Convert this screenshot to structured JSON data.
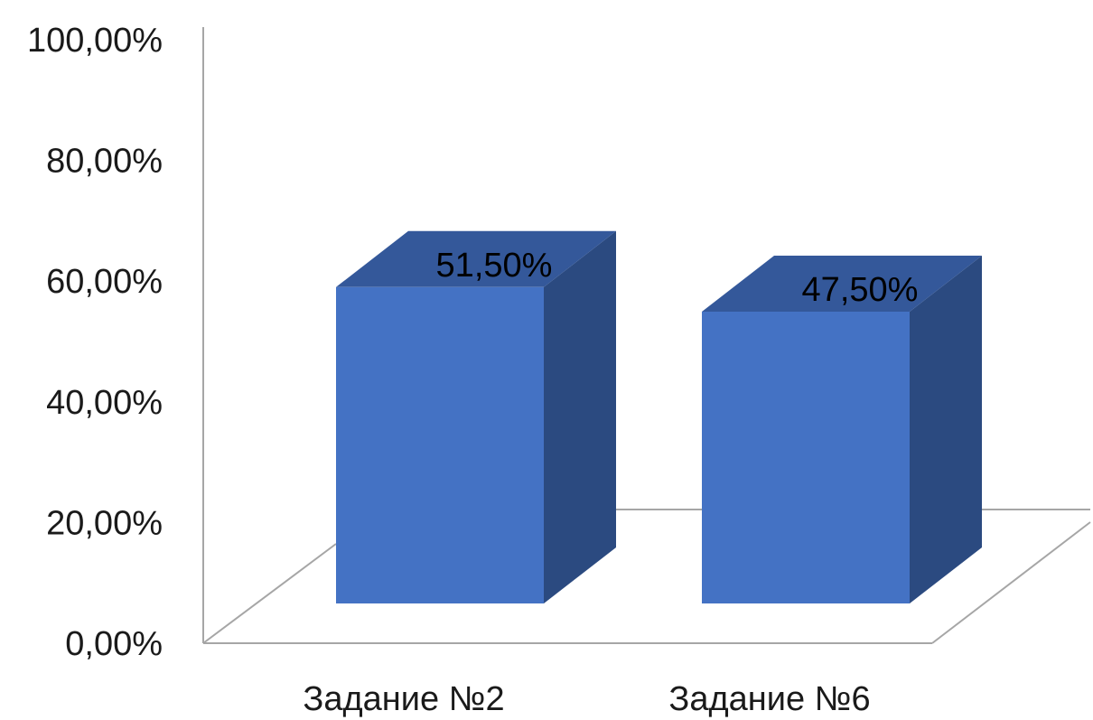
{
  "chart_data": {
    "type": "bar",
    "categories": [
      "Задание №2",
      "Задание №6"
    ],
    "values": [
      51.5,
      47.5
    ],
    "value_labels": [
      "51,50%",
      "47,50%"
    ],
    "ylim": [
      0,
      100
    ],
    "y_ticks": [
      0,
      20,
      40,
      60,
      80,
      100
    ],
    "y_tick_labels": [
      "0,00%",
      "20,00%",
      "40,00%",
      "60,00%",
      "80,00%",
      "100,00%"
    ],
    "grid": false,
    "legend": "none",
    "style": "3d-column",
    "colors": {
      "front": "#4472C4",
      "side": "#2B4A80",
      "top": "#34589A",
      "axis": "#A6A6A6"
    }
  }
}
